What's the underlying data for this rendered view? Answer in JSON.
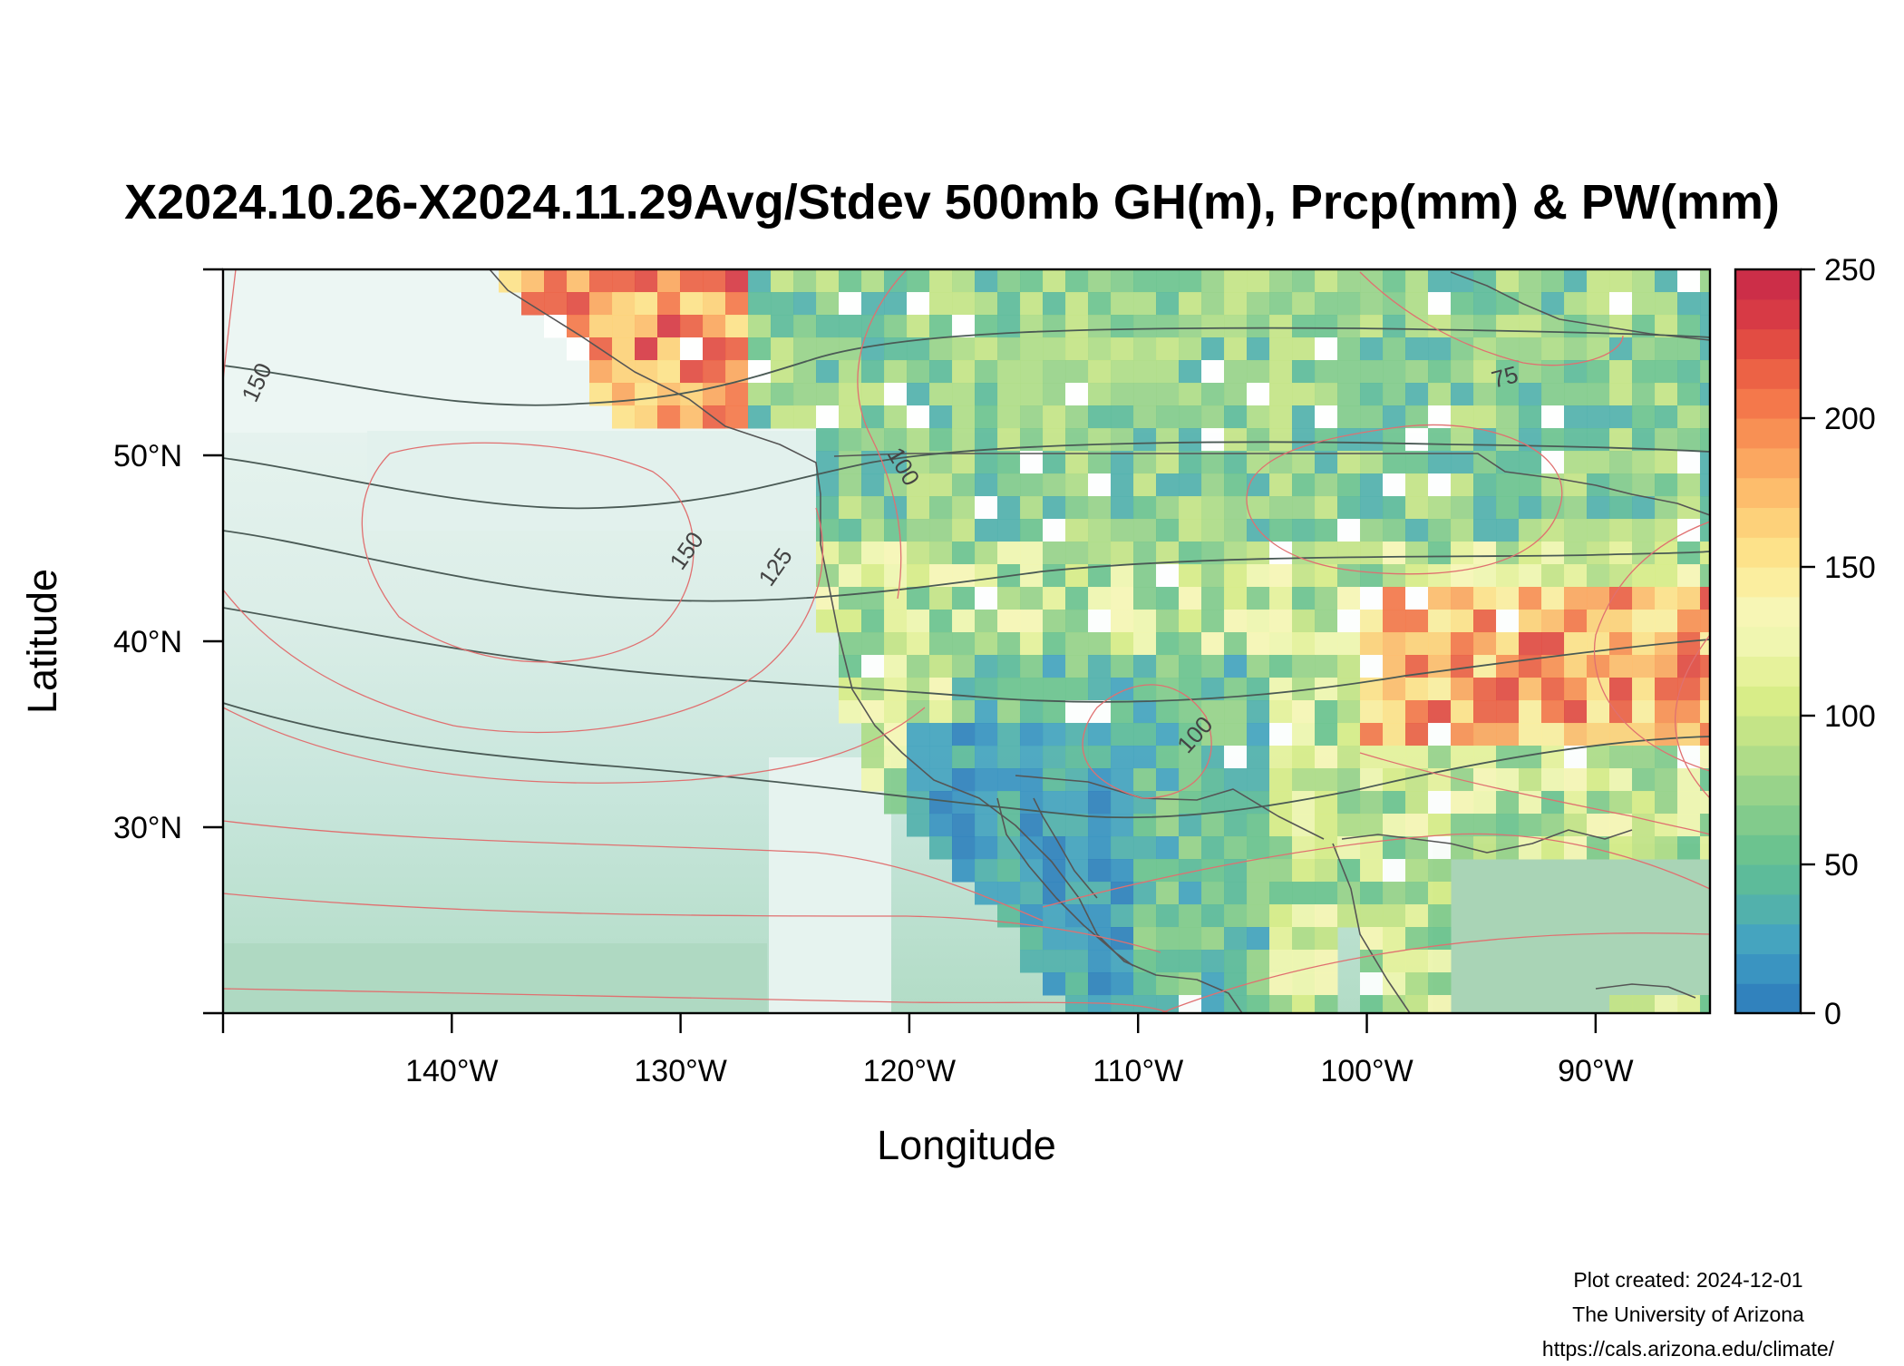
{
  "title": "X2024.10.26-X2024.11.29Avg/Stdev 500mb GH(m), Prcp(mm) & PW(mm)",
  "xlabel": "Longitude",
  "ylabel": "Latitude",
  "x_ticks": [
    "140°W",
    "130°W",
    "120°W",
    "110°W",
    "100°W",
    "90°W"
  ],
  "y_ticks": [
    "50°N",
    "40°N",
    "30°N"
  ],
  "colorbar": {
    "ticks": [
      "0",
      "50",
      "100",
      "150",
      "200",
      "250"
    ],
    "range": [
      0,
      250
    ],
    "palette": [
      "#3182bd",
      "#3a94c1",
      "#45a4bf",
      "#52b1ac",
      "#5dbb9a",
      "#6cc38f",
      "#82cb8c",
      "#98d38a",
      "#afdc88",
      "#c4e487",
      "#d8ed88",
      "#e6f29b",
      "#f0f6b0",
      "#f7f6b5",
      "#fbee9f",
      "#fde28a",
      "#fdd17a",
      "#fdbd6c",
      "#fba760",
      "#f89054",
      "#f4784b",
      "#ec6245",
      "#e24c43",
      "#d73a45",
      "#cc2e48"
    ]
  },
  "contour_labels": {
    "gh": [
      "150",
      "150",
      "125",
      "100",
      "100",
      "75"
    ]
  },
  "chart_data": {
    "type": "heatmap",
    "title": "X2024.10.26-X2024.11.29Avg/Stdev 500mb GH(m), Prcp(mm) & PW(mm)",
    "xlabel": "Longitude",
    "ylabel": "Latitude",
    "xlim": [
      -150,
      -85
    ],
    "ylim": [
      20,
      60
    ],
    "fill_variable": "Prcp(mm)",
    "fill_range": [
      0,
      250
    ],
    "contour_variable_black": "PW(mm)",
    "contour_variable_red": "Stdev 500mb GH(m)",
    "contour_labels_shown": [
      150,
      150,
      125,
      100,
      100,
      75
    ]
  },
  "credit": {
    "line1": "Plot created: 2024-12-01",
    "line2": "The University of Arizona",
    "line3": "https://cals.arizona.edu/climate/"
  }
}
